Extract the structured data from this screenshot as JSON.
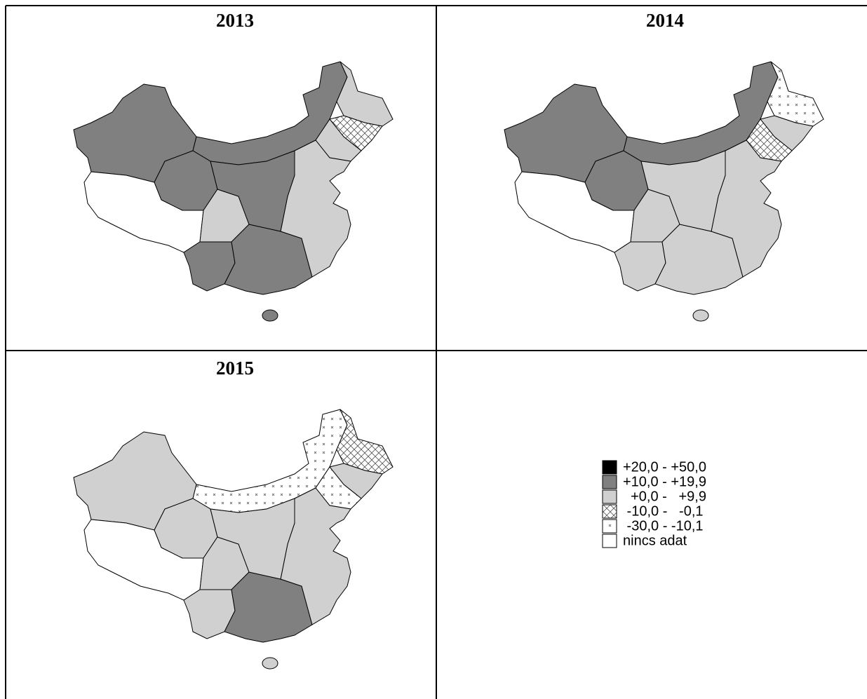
{
  "panels": [
    {
      "title": "2013"
    },
    {
      "title": "2014"
    },
    {
      "title": "2015"
    }
  ],
  "legend": [
    {
      "label": "+20,0 - +50,0"
    },
    {
      "label": "+10,0 - +19,9"
    },
    {
      "label": "  +0,0 -   +9,9"
    },
    {
      "label": " -10,0 -   -0,1"
    },
    {
      "label": " -30,0 - -10,1"
    },
    {
      "label": "nincs adat"
    }
  ]
}
